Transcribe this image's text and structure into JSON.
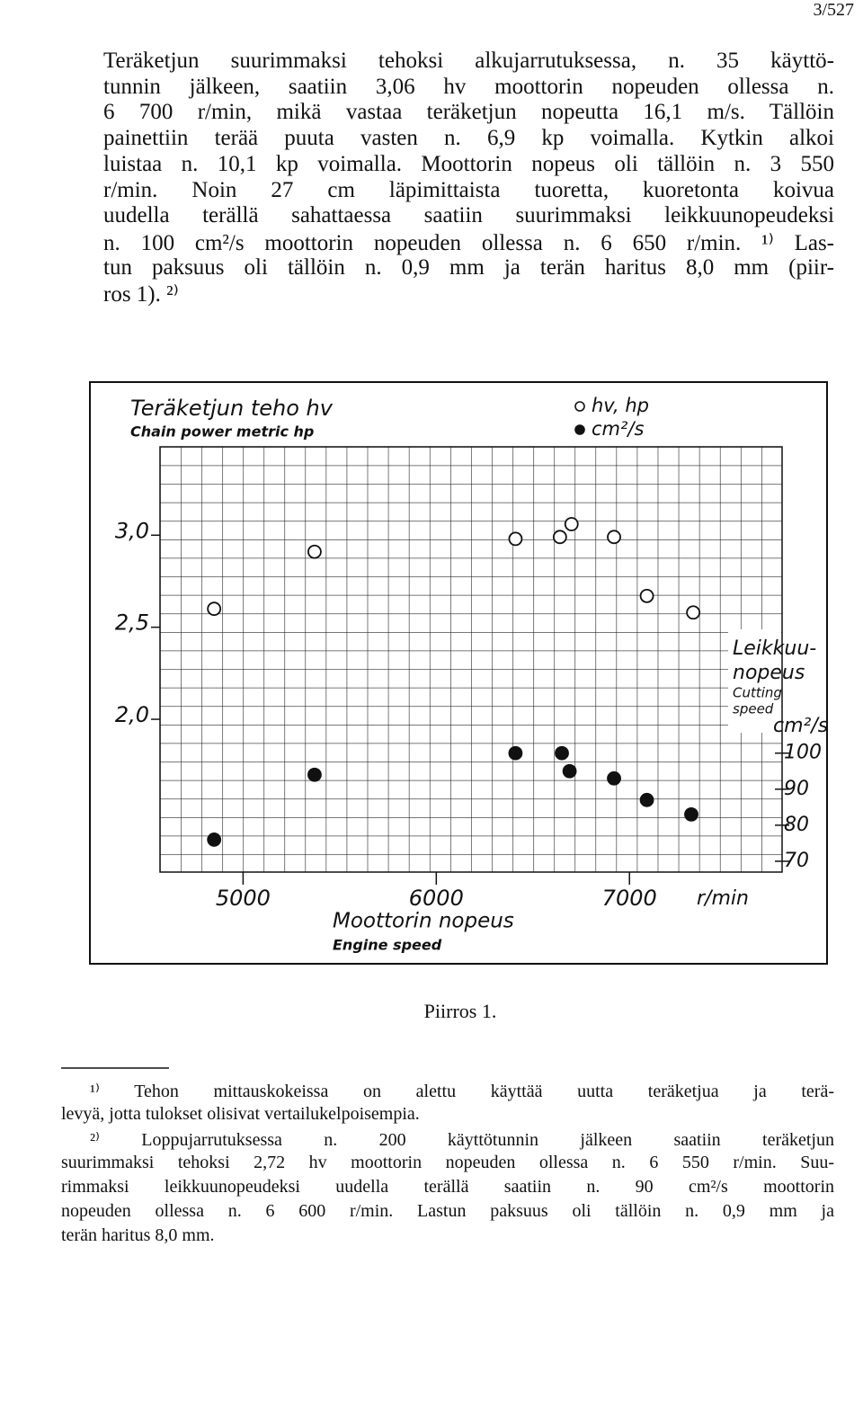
{
  "header": {
    "page": "3/527"
  },
  "text": {
    "lines": [
      "Teräketjun suurimmaksi tehoksi alkujarrutuksessa, n. 35 käyttö-",
      "tunnin jälkeen, saatiin 3,06 hv moottorin nopeuden ollessa n.",
      "6 700 r/min, mikä vastaa teräketjun nopeutta 16,1 m/s. Tällöin",
      "painettiin terää puuta vasten n. 6,9 kp voimalla. Kytkin alkoi",
      "luistaa n. 10,1 kp voimalla. Moottorin nopeus oli tällöin n. 3 550",
      "r/min. Noin 27 cm läpimittaista tuoretta, kuoretonta koivua",
      "uudella terällä sahattaessa saatiin suurimmaksi leikkuunopeudeksi",
      "n. 100 cm²/s moottorin nopeuden ollessa n. 6 650 r/min. ¹⁾ Las-",
      "tun paksuus oli tällöin n. 0,9 mm ja terän haritus 8,0 mm (piir-",
      "ros 1). ²⁾"
    ]
  },
  "chart_data": {
    "type": "scatter",
    "title": "Teräketjun teho hv",
    "subtitle": "Chain power metric hp",
    "x_label": "Moottorin nopeus",
    "x_label_en": "Engine speed",
    "x_unit": "r/min",
    "y2_label": [
      "Leikkuu-",
      "nopeus"
    ],
    "y2_label_en": [
      "Cutting",
      "speed"
    ],
    "y2_unit": "cm²/s",
    "xlim": [
      4570,
      7790
    ],
    "xticks": [
      5000,
      6000,
      7000
    ],
    "ylim": [
      1.17,
      3.48
    ],
    "yticks": [
      {
        "value": 2,
        "label": "2,0"
      },
      {
        "value": 2.5,
        "label": "2,5"
      },
      {
        "value": 3,
        "label": "3,0"
      }
    ],
    "y2lim": [
      67,
      185
    ],
    "y2ticks": [
      70,
      80,
      90,
      100
    ],
    "series": [
      {
        "name": "hv, hp",
        "marker": "open",
        "color": "#111111",
        "x": [
          4850,
          5370,
          6410,
          6640,
          6700,
          6920,
          7090,
          7330
        ],
        "values": [
          2.6,
          2.91,
          2.98,
          2.99,
          3.06,
          2.99,
          2.67,
          2.58
        ]
      },
      {
        "name": "cm²/s",
        "marker": "filled",
        "color": "#111111",
        "axis": "y2",
        "x": [
          4850,
          5370,
          6410,
          6650,
          6690,
          6920,
          7090,
          7320
        ],
        "values": [
          76,
          94,
          100,
          100,
          95,
          93,
          87,
          83
        ]
      }
    ]
  },
  "caption": "Piirros 1.",
  "footnotes": [
    {
      "lines": [
        "¹⁾ Tehon mittauskokeissa on alettu käyttää uutta teräketjua ja terä-",
        "levyä, jotta tulokset olisivat vertailukelpoisempia."
      ]
    },
    {
      "lines": [
        "²⁾ Loppujarrutuksessa n. 200 käyttötunnin jälkeen saatiin teräketjun",
        "suurimmaksi tehoksi 2,72 hv moottorin nopeuden ollessa n. 6 550 r/min. Suu-",
        "rimmaksi leikkuunopeudeksi uudella terällä saatiin n. 90 cm²/s moottorin",
        "nopeuden ollessa n. 6 600 r/min. Lastun paksuus oli tällöin n. 0,9 mm ja",
        "terän haritus 8,0 mm."
      ]
    }
  ]
}
